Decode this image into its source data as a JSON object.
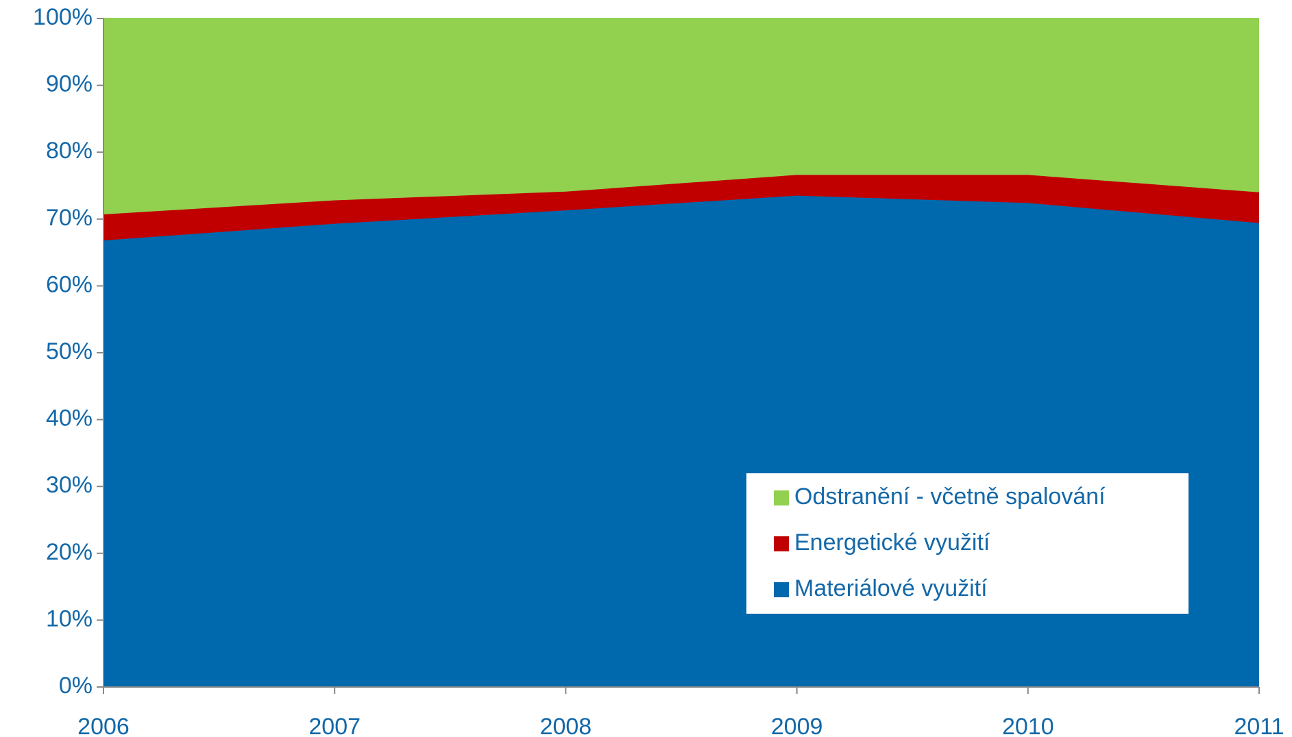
{
  "chart_data": {
    "type": "stacked-area",
    "categories": [
      "2006",
      "2007",
      "2008",
      "2009",
      "2010",
      "2011"
    ],
    "series": [
      {
        "name": "Materiálové využití",
        "color": "#0068ad",
        "values": [
          66.8,
          69.3,
          71.3,
          73.5,
          72.4,
          69.4
        ]
      },
      {
        "name": "Energetické využití",
        "color": "#c00000",
        "values": [
          3.9,
          3.5,
          2.8,
          3.1,
          4.2,
          4.6
        ]
      },
      {
        "name": "Odstranění - včetně spalování",
        "color": "#92d050",
        "values": [
          29.3,
          27.2,
          25.9,
          23.4,
          23.4,
          26.0
        ]
      }
    ],
    "ylim": [
      0,
      100
    ],
    "yticks": [
      {
        "value": 0,
        "label": "0%"
      },
      {
        "value": 10,
        "label": "10%"
      },
      {
        "value": 20,
        "label": "20%"
      },
      {
        "value": 30,
        "label": "30%"
      },
      {
        "value": 40,
        "label": "40%"
      },
      {
        "value": 50,
        "label": "50%"
      },
      {
        "value": 60,
        "label": "60%"
      },
      {
        "value": 70,
        "label": "70%"
      },
      {
        "value": 80,
        "label": "80%"
      },
      {
        "value": 90,
        "label": "90%"
      },
      {
        "value": 100,
        "label": "100%"
      }
    ],
    "legend": "lower right"
  }
}
